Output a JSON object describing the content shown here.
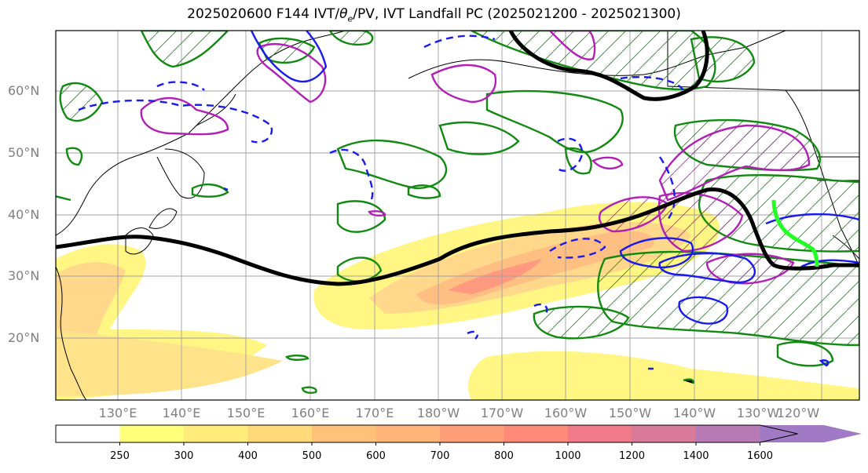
{
  "title": {
    "prefix": "2025020600 F144 IVT/",
    "theta": "θ",
    "theta_sub": "e",
    "suffix": "/PV, IVT Landfall PC (2025021200 - 2025021300)"
  },
  "map": {
    "lat_labels": [
      "60°N",
      "50°N",
      "40°N",
      "30°N",
      "20°N"
    ],
    "lon_labels": [
      "130°E",
      "140°E",
      "150°E",
      "160°E",
      "170°E",
      "180°W",
      "170°W",
      "160°W",
      "150°W",
      "140°W",
      "130°W",
      "120°W"
    ],
    "contour_colors": {
      "ivt_trough": "#000000",
      "green_contour": "#128a12",
      "magenta_contour": "#b21fb5",
      "blue_contour": "#1a1aee",
      "landfall_path": "#22ff22",
      "coastline": "#000000"
    }
  },
  "colorbar": {
    "labels": [
      "250",
      "300",
      "400",
      "500",
      "600",
      "700",
      "800",
      "1000",
      "1200",
      "1400",
      "1600"
    ],
    "colors": [
      "#ffff7a",
      "#ffec7a",
      "#ffd97a",
      "#ffc27a",
      "#ffb47a",
      "#ff9f7a",
      "#ff8a7a",
      "#f07a8a",
      "#d97a9a",
      "#b87ab5",
      "#a07ac5"
    ]
  }
}
